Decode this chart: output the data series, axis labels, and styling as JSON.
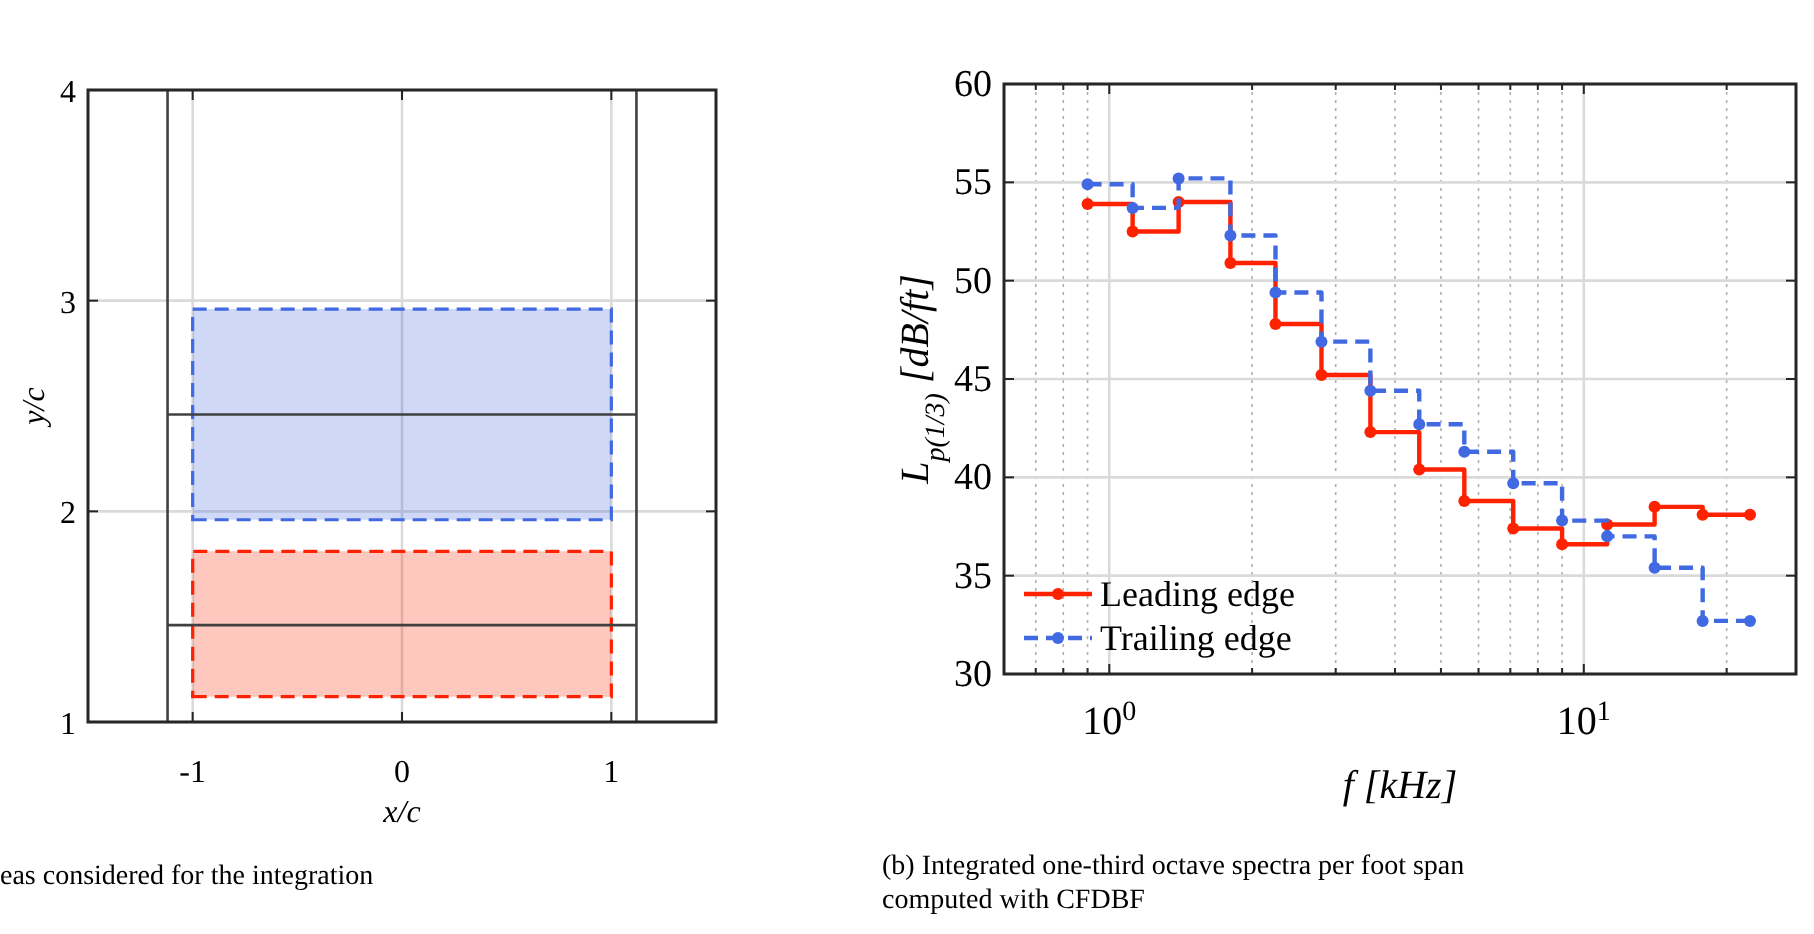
{
  "chart_data": [
    {
      "type": "line",
      "xlabel": "x/c",
      "ylabel": "y/c",
      "xlim": [
        -1.5,
        1.5
      ],
      "ylim": [
        1,
        4
      ],
      "xticks": [
        {
          "value": -1,
          "label": "-1"
        },
        0,
        1
      ],
      "yticks": [
        1,
        2,
        3,
        4
      ],
      "grid": true,
      "marker": "none",
      "series": [
        {
          "type": "area",
          "x": [
            -1,
            1,
            1,
            -1,
            -1
          ],
          "values": [
            1.96,
            1.96,
            2.96,
            2.96,
            1.96
          ],
          "color": "#4169e1",
          "line_style": "dashed"
        },
        {
          "type": "area",
          "x": [
            -1,
            1,
            1,
            -1,
            -1
          ],
          "values": [
            1.12,
            1.12,
            1.81,
            1.81,
            1.12
          ],
          "color": "#ff2200",
          "line_style": "dashed"
        },
        {
          "x": [
            -1.12,
            1.12
          ],
          "values": [
            2.46,
            2.46
          ],
          "color": "#404040",
          "line_style": "solid"
        },
        {
          "x": [
            -1.12,
            1.12
          ],
          "values": [
            1.46,
            1.46
          ],
          "color": "#404040",
          "line_style": "solid"
        }
      ],
      "ref_lines": [
        {
          "axis": "x",
          "value": -1.12,
          "color": "#404040"
        },
        {
          "axis": "x",
          "value": 1.12,
          "color": "#404040"
        }
      ],
      "annotations": [
        "eas considered for the integration"
      ]
    },
    {
      "type": "step",
      "xlabel": "f [kHz]",
      "ylabel": "L$_{p(1/3)}$ [dB/ft]",
      "log": "x",
      "xlim": [
        0.6,
        28
      ],
      "ylim": [
        30,
        60
      ],
      "xticks": [
        {
          "value": 0.6,
          "label": null
        },
        {
          "value": 0.7,
          "label": null
        },
        {
          "value": 0.8,
          "label": null
        },
        {
          "value": 0.9,
          "label": null
        },
        {
          "value": 1,
          "label": "10$^{0}$"
        },
        {
          "value": 2,
          "label": null
        },
        {
          "value": 3,
          "label": null
        },
        {
          "value": 4,
          "label": null
        },
        {
          "value": 5,
          "label": null
        },
        {
          "value": 6,
          "label": null
        },
        {
          "value": 7,
          "label": null
        },
        {
          "value": 8,
          "label": null
        },
        {
          "value": 9,
          "label": null
        },
        {
          "value": 10,
          "label": "10$^{1}$"
        },
        {
          "value": 20,
          "label": null
        }
      ],
      "yticks": [
        30,
        35,
        40,
        45,
        50,
        55,
        60
      ],
      "grid": true,
      "legend": "bottom left",
      "marker": "circle",
      "x": [
        0.9,
        1.12,
        1.4,
        1.8,
        2.24,
        2.8,
        3.55,
        4.5,
        5.6,
        7.1,
        9,
        11.2,
        14.1,
        17.8,
        22.4
      ],
      "series": [
        {
          "name": "Leading edge",
          "color": "#ff2200",
          "line_style": "solid",
          "values": [
            53.9,
            52.5,
            54.0,
            50.9,
            47.8,
            45.2,
            42.3,
            40.4,
            38.8,
            37.4,
            36.6,
            37.6,
            38.5,
            38.1,
            38.1
          ]
        },
        {
          "name": "Trailing edge",
          "color": "#4169e1",
          "line_style": "dashed",
          "values": [
            54.9,
            53.7,
            55.2,
            52.3,
            49.4,
            46.9,
            44.4,
            42.7,
            41.3,
            39.7,
            37.8,
            37.0,
            35.4,
            32.7,
            32.7
          ]
        }
      ],
      "annotations": [
        "(b) Integrated one-third octave spectra per foot span computed with CFDBF"
      ]
    }
  ]
}
